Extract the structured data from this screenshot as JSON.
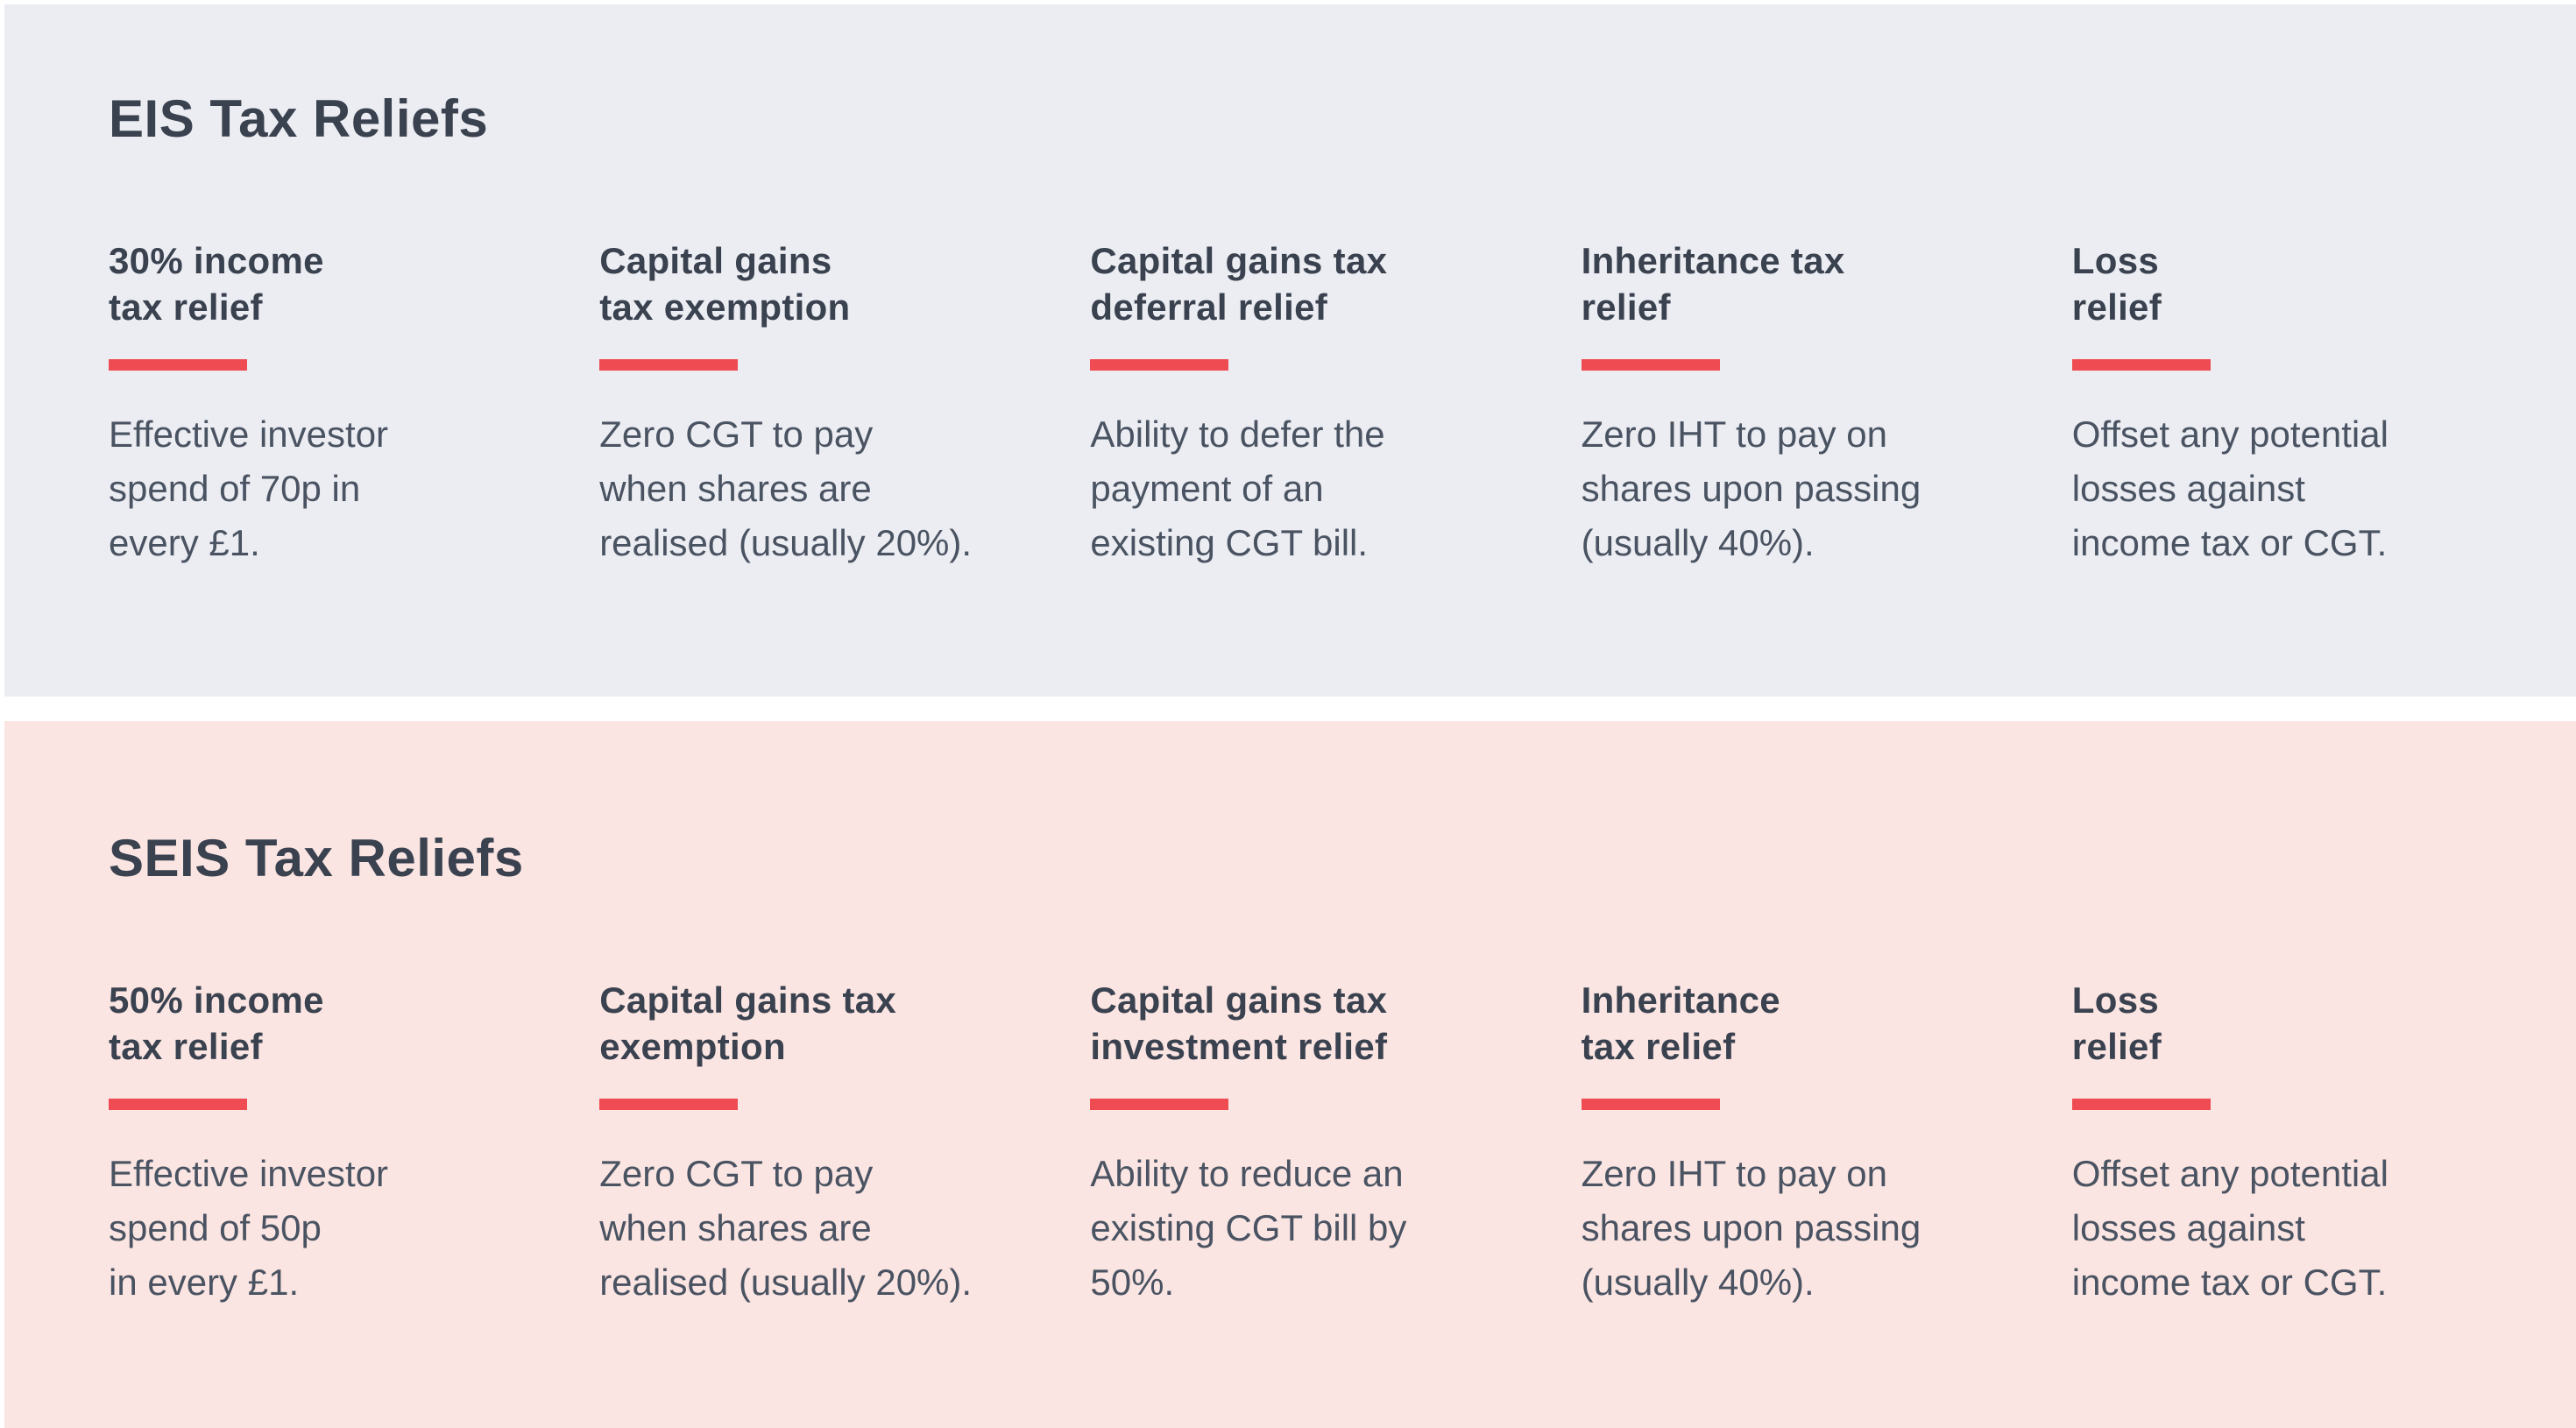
{
  "colors": {
    "accent": "#EE4C52",
    "eis_panel_background": "#ECEDF2",
    "seis_panel_background": "#FBE5E2",
    "heading_text": "#3A4250",
    "body_text": "#4A5362",
    "page_background": "#FFFFFF"
  },
  "panels": [
    {
      "title": "EIS Tax Reliefs",
      "columns": [
        {
          "heading": "30% income\ntax relief",
          "body": "Effective investor\nspend of 70p in\nevery £1."
        },
        {
          "heading": "Capital gains\ntax exemption",
          "body": "Zero CGT to pay\nwhen shares are\nrealised (usually 20%)."
        },
        {
          "heading": "Capital gains tax\ndeferral relief",
          "body": "Ability to defer the\npayment of an\nexisting CGT bill."
        },
        {
          "heading": "Inheritance tax\nrelief",
          "body": "Zero IHT to pay on\nshares upon passing\n(usually 40%)."
        },
        {
          "heading": "Loss\nrelief",
          "body": "Offset any potential\nlosses against\nincome tax or CGT."
        }
      ]
    },
    {
      "title": "SEIS Tax Reliefs",
      "columns": [
        {
          "heading": "50% income\ntax relief",
          "body": "Effective investor\nspend of 50p\nin every £1."
        },
        {
          "heading": "Capital gains tax\nexemption",
          "body": "Zero CGT to pay\nwhen shares are\nrealised (usually 20%)."
        },
        {
          "heading": "Capital gains tax\ninvestment relief",
          "body": "Ability to reduce an\nexisting CGT bill by\n50%."
        },
        {
          "heading": "Inheritance\ntax relief",
          "body": "Zero IHT to pay on\nshares upon passing\n(usually 40%)."
        },
        {
          "heading": "Loss\nrelief",
          "body": "Offset any potential\nlosses against\nincome tax or CGT."
        }
      ]
    }
  ]
}
